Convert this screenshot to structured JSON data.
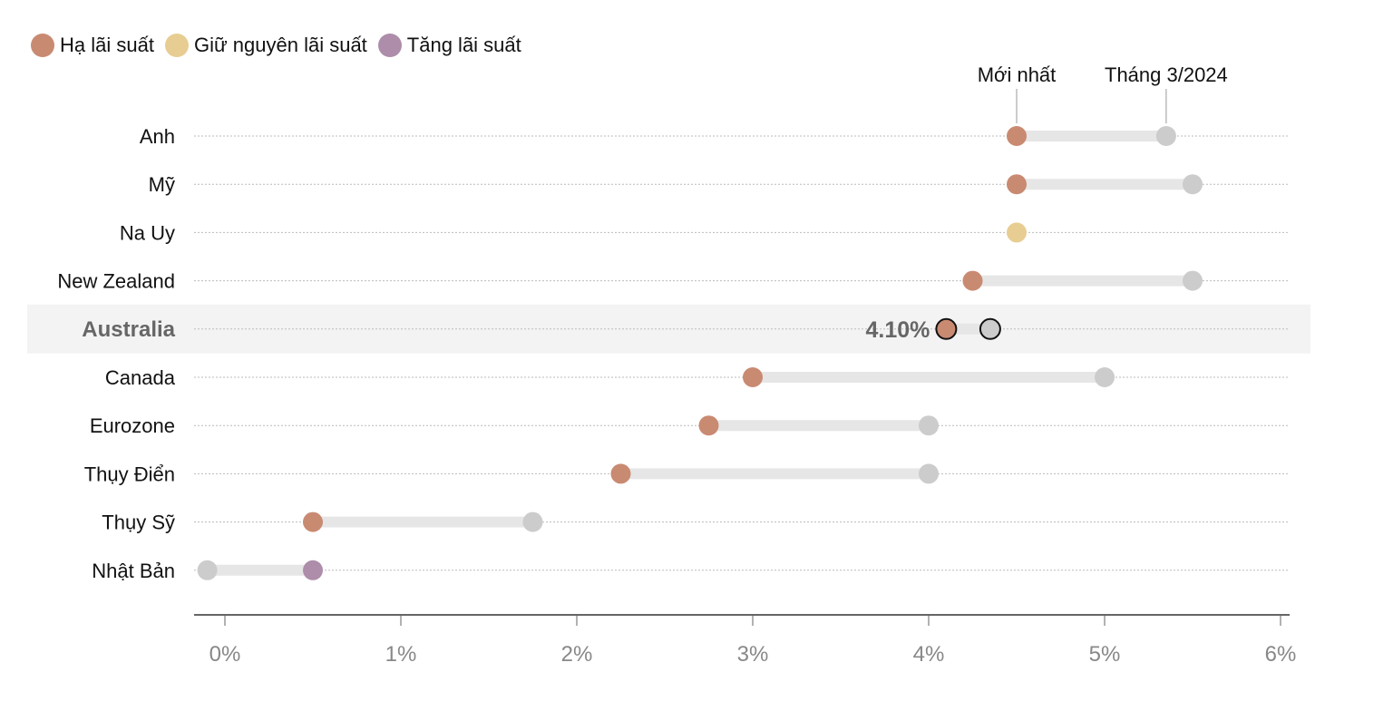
{
  "legend": [
    {
      "label": "Hạ lãi suất",
      "color": "#c98a72"
    },
    {
      "label": "Giữ nguyên lãi suất",
      "color": "#e8cd92"
    },
    {
      "label": "Tăng lãi suất",
      "color": "#ad8daa"
    }
  ],
  "annotations": {
    "latest": "Mới nhất",
    "previous": "Tháng 3/2024"
  },
  "colors": {
    "cut": "#c98a72",
    "hold": "#e8cd92",
    "hike": "#ad8daa",
    "previous": "#cccccc",
    "range_bar": "#e6e6e6",
    "highlight_band": "#f3f3f3",
    "axis": "#666666",
    "gridline": "#bbbbbb"
  },
  "chart_data": {
    "type": "dumbbell",
    "x_unit": "%",
    "xlim": [
      -0.17,
      6.07
    ],
    "x_ticks": [
      {
        "value": 0,
        "label": "0%"
      },
      {
        "value": 1,
        "label": "1%"
      },
      {
        "value": 2,
        "label": "2%"
      },
      {
        "value": 3,
        "label": "3%"
      },
      {
        "value": 4,
        "label": "4%"
      },
      {
        "value": 5,
        "label": "5%"
      },
      {
        "value": 6,
        "label": "6%"
      }
    ],
    "countries": [
      {
        "name": "Anh",
        "latest": 4.5,
        "previous": 5.35,
        "status": "cut"
      },
      {
        "name": "Mỹ",
        "latest": 4.5,
        "previous": 5.5,
        "status": "cut"
      },
      {
        "name": "Na Uy",
        "latest": 4.5,
        "previous": 4.5,
        "status": "hold"
      },
      {
        "name": "New Zealand",
        "latest": 4.25,
        "previous": 5.5,
        "status": "cut"
      },
      {
        "name": "Australia",
        "latest": 4.1,
        "previous": 4.35,
        "status": "cut",
        "highlight": true,
        "value_label": "4.10%"
      },
      {
        "name": "Canada",
        "latest": 3.0,
        "previous": 5.0,
        "status": "cut"
      },
      {
        "name": "Eurozone",
        "latest": 2.75,
        "previous": 4.0,
        "status": "cut"
      },
      {
        "name": "Thụy Điển",
        "latest": 2.25,
        "previous": 4.0,
        "status": "cut"
      },
      {
        "name": "Thụy Sỹ",
        "latest": 0.5,
        "previous": 1.75,
        "status": "cut"
      },
      {
        "name": "Nhật Bản",
        "latest": 0.5,
        "previous": -0.1,
        "status": "hike"
      }
    ]
  }
}
